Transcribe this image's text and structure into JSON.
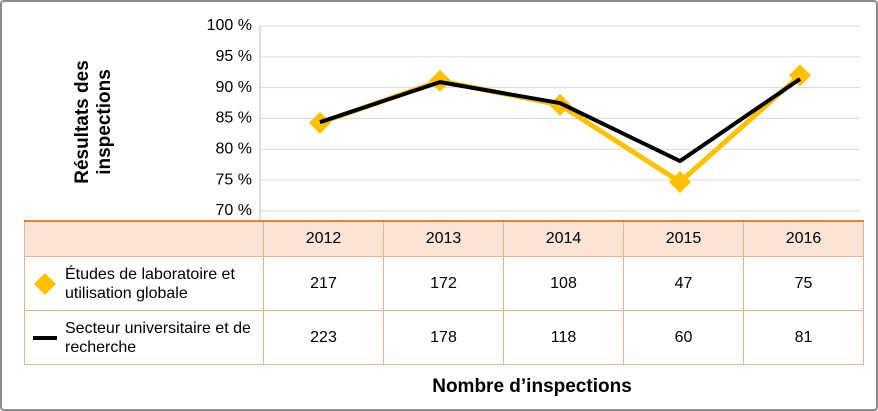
{
  "chart_data": {
    "type": "line",
    "y_label": "Résultats des inspections",
    "x_label": "Nombre d’inspections",
    "categories": [
      "2012",
      "2013",
      "2014",
      "2015",
      "2016"
    ],
    "series": [
      {
        "name": "Études de laboratoire et utilisation globale",
        "color": "#ffc000",
        "marker": "diamond",
        "values": [
          84.3,
          91.1,
          87.2,
          74.7,
          92.0
        ],
        "inspections": [
          217,
          172,
          108,
          47,
          75
        ]
      },
      {
        "name": "Secteur universitaire et de recherche",
        "color": "#000000",
        "marker": "none",
        "values": [
          84.4,
          90.9,
          87.5,
          78.1,
          91.4
        ],
        "inspections": [
          223,
          178,
          118,
          60,
          81
        ]
      }
    ],
    "ylim": [
      70,
      100
    ],
    "yticks": [
      {
        "value": 70,
        "label": "70 %"
      },
      {
        "value": 75,
        "label": "75 %"
      },
      {
        "value": 80,
        "label": "80 %"
      },
      {
        "value": 85,
        "label": "85 %"
      },
      {
        "value": 90,
        "label": "90 %"
      },
      {
        "value": 95,
        "label": "95 %"
      },
      {
        "value": 100,
        "label": "100 %"
      }
    ],
    "grid": true
  }
}
